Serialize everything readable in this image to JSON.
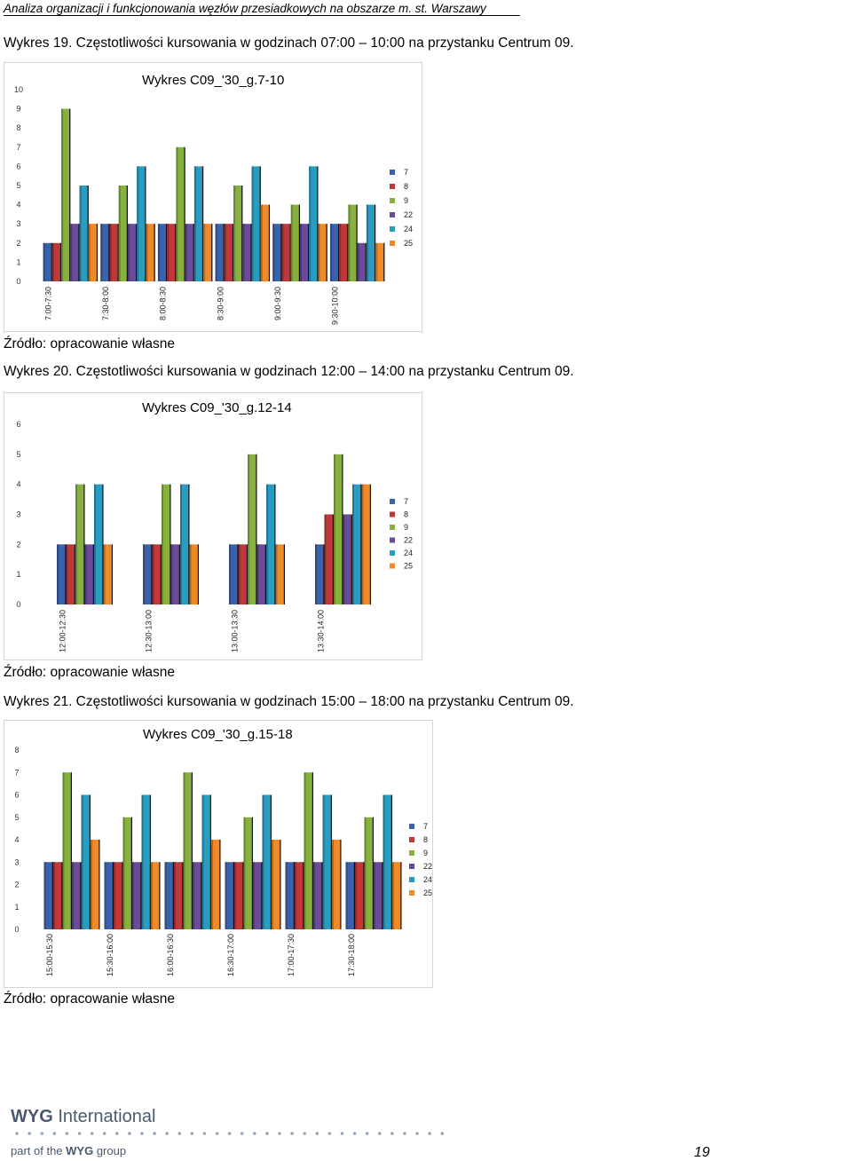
{
  "header": {
    "running_title": "Analiza organizacji i funkcjonowania węzłów przesiadkowych na obszarze m. st. Warszawy"
  },
  "figures": [
    {
      "caption": "Wykres 19. Częstotliwości kursowania w godzinach 07:00 – 10:00 na przystanku Centrum 09.",
      "source": "Źródło: opracowanie własne"
    },
    {
      "caption": "Wykres 20. Częstotliwości kursowania w godzinach 12:00 – 14:00 na przystanku Centrum 09.",
      "source": "Źródło: opracowanie własne"
    },
    {
      "caption": "Wykres 21. Częstotliwości kursowania w godzinach 15:00 – 18:00 na przystanku Centrum 09.",
      "source": "Źródło: opracowanie własne"
    }
  ],
  "colors": {
    "s7": "#3a62a8",
    "s8": "#c0393a",
    "s9": "#86b13f",
    "s22": "#6a4a9a",
    "s24": "#2a9cc0",
    "s25": "#ee8a2a"
  },
  "chart_data": [
    {
      "type": "bar",
      "title": "Wykres C09_'30_g.7-10",
      "categories": [
        "7:00-7:30",
        "7:30-8:00",
        "8:00-8:30",
        "8:30-9:00",
        "9:00-9:30",
        "9:30-10:00"
      ],
      "ylim": [
        0,
        10
      ],
      "yticks": [
        0,
        1,
        2,
        3,
        4,
        5,
        6,
        7,
        8,
        9,
        10
      ],
      "grid": false,
      "legend": "right",
      "series": [
        {
          "name": "7",
          "values": [
            2,
            3,
            3,
            3,
            3,
            3
          ]
        },
        {
          "name": "8",
          "values": [
            2,
            3,
            3,
            3,
            3,
            3
          ]
        },
        {
          "name": "9",
          "values": [
            9,
            5,
            7,
            5,
            4,
            4
          ]
        },
        {
          "name": "22",
          "values": [
            3,
            3,
            3,
            3,
            3,
            2
          ]
        },
        {
          "name": "24",
          "values": [
            5,
            6,
            6,
            6,
            6,
            4
          ]
        },
        {
          "name": "25",
          "values": [
            3,
            3,
            3,
            4,
            3,
            2
          ]
        }
      ]
    },
    {
      "type": "bar",
      "title": "Wykres C09_'30_g.12-14",
      "categories": [
        "12:00-12:30",
        "12:30-13:00",
        "13:00-13:30",
        "13:30-14:00"
      ],
      "ylim": [
        0,
        6
      ],
      "yticks": [
        0,
        1,
        2,
        3,
        4,
        5,
        6
      ],
      "grid": false,
      "legend": "right",
      "series": [
        {
          "name": "7",
          "values": [
            2,
            2,
            2,
            2
          ]
        },
        {
          "name": "8",
          "values": [
            2,
            2,
            2,
            3
          ]
        },
        {
          "name": "9",
          "values": [
            4,
            4,
            5,
            5
          ]
        },
        {
          "name": "22",
          "values": [
            2,
            2,
            2,
            3
          ]
        },
        {
          "name": "24",
          "values": [
            4,
            4,
            4,
            4
          ]
        },
        {
          "name": "25",
          "values": [
            2,
            2,
            2,
            4
          ]
        }
      ]
    },
    {
      "type": "bar",
      "title": "Wykres C09_'30_g.15-18",
      "categories": [
        "15:00-15:30",
        "15:30-16:00",
        "16:00-16:30",
        "16:30-17:00",
        "17:00-17:30",
        "17:30-18:00"
      ],
      "ylim": [
        0,
        8
      ],
      "yticks": [
        0,
        1,
        2,
        3,
        4,
        5,
        6,
        7,
        8
      ],
      "grid": false,
      "legend": "right",
      "series": [
        {
          "name": "7",
          "values": [
            3,
            3,
            3,
            3,
            3,
            3
          ]
        },
        {
          "name": "8",
          "values": [
            3,
            3,
            3,
            3,
            3,
            3
          ]
        },
        {
          "name": "9",
          "values": [
            7,
            5,
            7,
            5,
            7,
            5
          ]
        },
        {
          "name": "22",
          "values": [
            3,
            3,
            3,
            3,
            3,
            3
          ]
        },
        {
          "name": "24",
          "values": [
            6,
            6,
            6,
            6,
            6,
            6
          ]
        },
        {
          "name": "25",
          "values": [
            4,
            3,
            4,
            4,
            4,
            3
          ]
        }
      ]
    }
  ],
  "footer": {
    "brand_strong": "WYG",
    "brand_rest": " International",
    "sub_pre": "part of the ",
    "sub_strong": "WYG",
    "sub_post": " group",
    "page_number": "19"
  }
}
